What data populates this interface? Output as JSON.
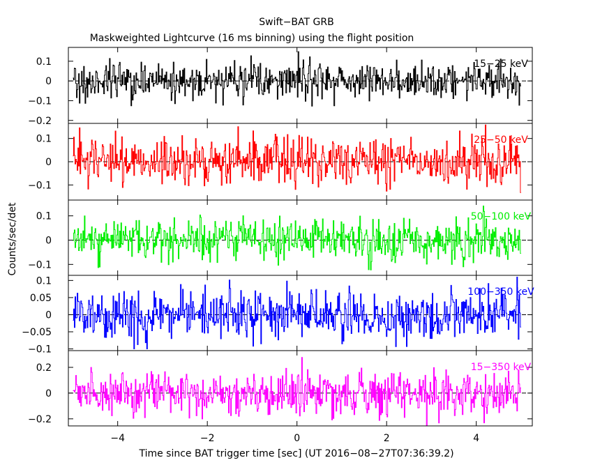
{
  "chart_data": {
    "type": "line",
    "title": "Swift−BAT GRB",
    "subtitle": "Maskweighted Lightcurve (16 ms binning) using the flight position",
    "xlabel": "Time since BAT trigger time [sec] (UT 2016−08−27T07:36:39.2)",
    "ylabel": "Counts/sec/det",
    "xlim": [
      -5.1,
      5.25
    ],
    "x_ticks": [
      -4,
      -2,
      0,
      2,
      4
    ],
    "x_tick_labels": [
      "−4",
      "−2",
      "0",
      "2",
      "4"
    ],
    "bin_seconds": 0.016,
    "time_range": [
      -5.0,
      4.984
    ],
    "zero_line": "dashed",
    "panels": [
      {
        "band": "15−25 keV",
        "color": "#000000",
        "ylim": [
          -0.215,
          0.17
        ],
        "y_ticks": [
          0.1,
          0,
          -0.1,
          -0.2
        ],
        "y_tick_labels": [
          "0.1",
          "0",
          "−0.1",
          "−0.2"
        ],
        "noise_amplitude": 0.045,
        "peak_range": [
          -0.21,
          0.16
        ]
      },
      {
        "band": "25−50 keV",
        "color": "#ff0000",
        "ylim": [
          -0.165,
          0.165
        ],
        "y_ticks": [
          0.1,
          0,
          -0.1
        ],
        "y_tick_labels": [
          "0.1",
          "0",
          "−0.1"
        ],
        "noise_amplitude": 0.05,
        "peak_range": [
          -0.16,
          0.16
        ]
      },
      {
        "band": "50−100 keV",
        "color": "#00ee00",
        "ylim": [
          -0.145,
          0.165
        ],
        "y_ticks": [
          0.1,
          0,
          -0.1
        ],
        "y_tick_labels": [
          "0.1",
          "0",
          "−0.1"
        ],
        "noise_amplitude": 0.045,
        "peak_range": [
          -0.14,
          0.16
        ]
      },
      {
        "band": "100−350 keV",
        "color": "#0000ff",
        "ylim": [
          -0.105,
          0.115
        ],
        "y_ticks": [
          0.1,
          0.05,
          0,
          -0.05,
          -0.1
        ],
        "y_tick_labels": [
          "0.1",
          "0.05",
          "0",
          "−0.05",
          "−0.1"
        ],
        "noise_amplitude": 0.035,
        "peak_range": [
          -0.1,
          0.11
        ]
      },
      {
        "band": "15−350 keV",
        "color": "#ff00ff",
        "ylim": [
          -0.255,
          0.33
        ],
        "y_ticks": [
          0.2,
          0,
          -0.2
        ],
        "y_tick_labels": [
          "0.2",
          "0",
          "−0.2"
        ],
        "noise_amplitude": 0.085,
        "peak_range": [
          -0.25,
          0.32
        ]
      }
    ]
  }
}
